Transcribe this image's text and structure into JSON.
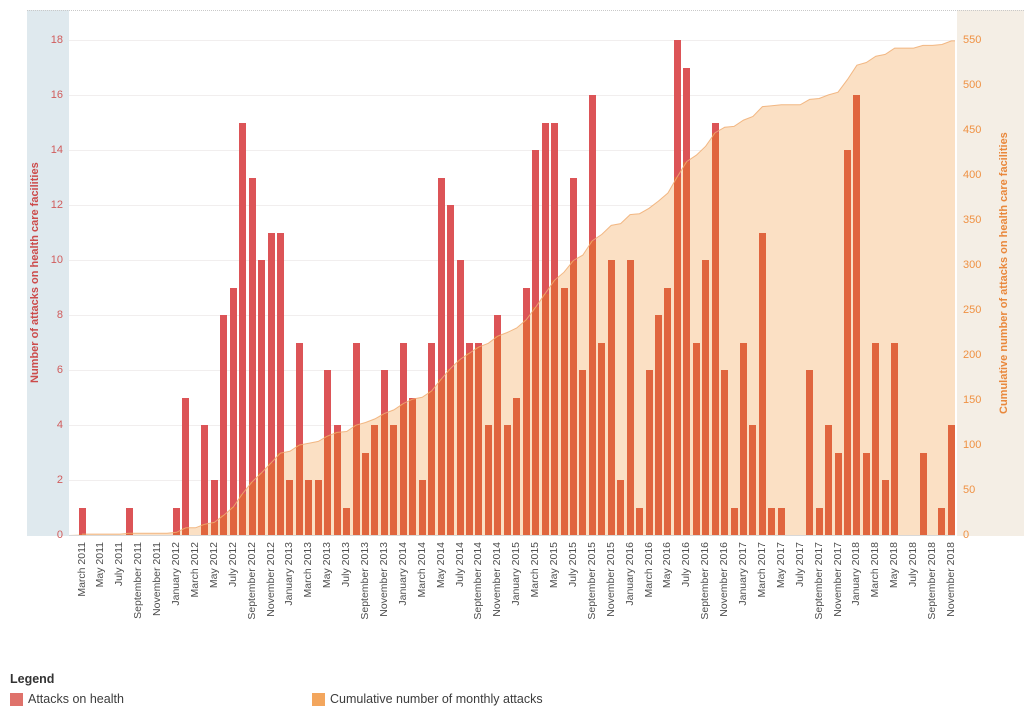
{
  "chart_data": {
    "type": "bar",
    "subtype": "monthly bars with cumulative area overlay (dual axis)",
    "title": "",
    "months": [
      "March 2011",
      "April 2011",
      "May 2011",
      "June 2011",
      "July 2011",
      "August 2011",
      "September 2011",
      "October 2011",
      "November 2011",
      "December 2011",
      "January 2012",
      "February 2012",
      "March 2012",
      "April 2012",
      "May 2012",
      "June 2012",
      "July 2012",
      "August 2012",
      "September 2012",
      "October 2012",
      "November 2012",
      "December 2012",
      "January 2013",
      "February 2013",
      "March 2013",
      "April 2013",
      "May 2013",
      "June 2013",
      "July 2013",
      "August 2013",
      "September 2013",
      "October 2013",
      "November 2013",
      "December 2013",
      "January 2014",
      "February 2014",
      "March 2014",
      "April 2014",
      "May 2014",
      "June 2014",
      "July 2014",
      "August 2014",
      "September 2014",
      "October 2014",
      "November 2014",
      "December 2014",
      "January 2015",
      "February 2015",
      "March 2015",
      "April 2015",
      "May 2015",
      "June 2015",
      "July 2015",
      "August 2015",
      "September 2015",
      "October 2015",
      "November 2015",
      "December 2015",
      "January 2016",
      "February 2016",
      "March 2016",
      "April 2016",
      "May 2016",
      "June 2016",
      "July 2016",
      "August 2016",
      "September 2016",
      "October 2016",
      "November 2016",
      "December 2016",
      "January 2017",
      "February 2017",
      "March 2017",
      "April 2017",
      "May 2017",
      "June 2017",
      "July 2017",
      "August 2017",
      "September 2017",
      "October 2017",
      "November 2017",
      "December 2017",
      "January 2018",
      "February 2018",
      "March 2018",
      "April 2018",
      "May 2018",
      "June 2018",
      "July 2018",
      "August 2018",
      "September 2018",
      "October 2018",
      "November 2018"
    ],
    "monthly_attacks": [
      1,
      0,
      0,
      0,
      0,
      1,
      0,
      0,
      0,
      0,
      1,
      5,
      0,
      4,
      2,
      8,
      9,
      15,
      13,
      10,
      11,
      11,
      2,
      7,
      2,
      2,
      6,
      4,
      1,
      7,
      3,
      4,
      6,
      4,
      7,
      5,
      2,
      7,
      13,
      12,
      10,
      7,
      7,
      4,
      8,
      4,
      5,
      9,
      14,
      15,
      15,
      9,
      13,
      6,
      16,
      7,
      10,
      2,
      10,
      1,
      6,
      8,
      9,
      18,
      17,
      7,
      10,
      15,
      6,
      1,
      7,
      4,
      11,
      1,
      1,
      0,
      0,
      6,
      1,
      4,
      3,
      14,
      16,
      3,
      7,
      2,
      7,
      0,
      0,
      3,
      0,
      1,
      4
    ],
    "cumulative_is_running_sum_of_monthly": true,
    "cumulative_final": 549,
    "x_tick_every_n_months": 2,
    "left_axis": {
      "label": "Number of attacks on health care facilities",
      "min": 0,
      "max": 18,
      "tick_step": 2
    },
    "right_axis": {
      "label": "Cumulative number of attacks on health care facilities",
      "min": 0,
      "max": 550,
      "tick_step": 50
    },
    "grid": "horizontal, every 2 units of left axis",
    "legend_position": "bottom-left"
  },
  "legend": {
    "title": "Legend",
    "items": [
      {
        "label": "Attacks on health",
        "color": "#df726b"
      },
      {
        "label": "Cumulative number of monthly attacks",
        "color": "#f3a65d"
      }
    ]
  },
  "colors": {
    "bar_red": "#dc5457",
    "bar_inside_area": "#e0653e",
    "area_fill": "#fbe0c4",
    "area_edge": "#f0ad72",
    "left_band": "#dfe9ee",
    "right_band": "#f4eee5",
    "left_axis_text": "#d05c5c",
    "left_axis_title": "#cc4b4b",
    "right_axis_text": "#ef9143",
    "right_axis_title": "#e9883c",
    "x_label_text": "#4e4e4e",
    "gridline": "#f1eeee",
    "baseline": "#d8d8d8"
  }
}
